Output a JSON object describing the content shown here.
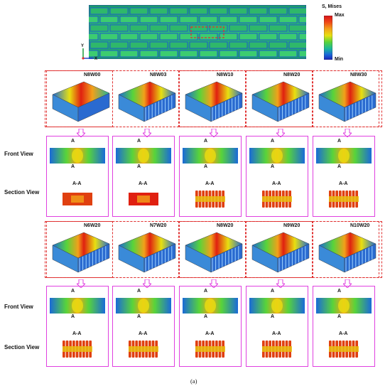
{
  "legend": {
    "title": "S, Mises",
    "max_label": "Max",
    "min_label": "Min"
  },
  "axes": {
    "y": "Y",
    "x": "X",
    "z": "Z"
  },
  "rows": {
    "front_view": "Front View",
    "section_view": "Section View"
  },
  "section_tag": "A-A",
  "cut_marker": "A",
  "group1": {
    "models": [
      "N8W00",
      "N8W03",
      "N8W10",
      "N8W20",
      "N8W30"
    ]
  },
  "group2": {
    "models": [
      "N6W20",
      "N7W20",
      "N8W20",
      "N9W20",
      "N10W20"
    ]
  },
  "caption": "(a)",
  "colors": {
    "frame_red": "#e03030",
    "frame_magenta": "#e040e0",
    "steel_blue": "#1f4fd1",
    "contour_red": "#e02010"
  }
}
